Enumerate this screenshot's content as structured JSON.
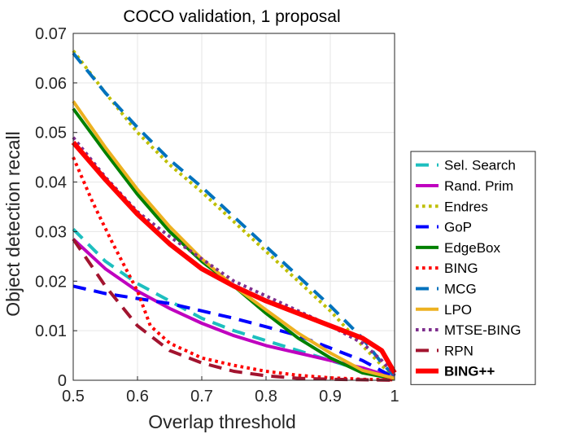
{
  "chart_data": {
    "type": "line",
    "title": "COCO validation, 1 proposal",
    "xlabel": "Overlap threshold",
    "ylabel": "Object detection recall",
    "xlim": [
      0.5,
      1.0
    ],
    "ylim": [
      0,
      0.07
    ],
    "xticks": [
      "0.5",
      "0.6",
      "0.7",
      "0.8",
      "0.9",
      "1"
    ],
    "yticks": [
      "0",
      "0.01",
      "0.02",
      "0.03",
      "0.04",
      "0.05",
      "0.06",
      "0.07"
    ],
    "grid": true,
    "legend_position": "right",
    "series": [
      {
        "name": "Sel. Search",
        "color": "#1dbfbf",
        "style": "dashed",
        "width": 4,
        "x": [
          0.5,
          0.55,
          0.6,
          0.65,
          0.7,
          0.75,
          0.8,
          0.85,
          0.9,
          0.95,
          1.0
        ],
        "y": [
          0.0305,
          0.024,
          0.0195,
          0.016,
          0.0125,
          0.01,
          0.008,
          0.006,
          0.004,
          0.002,
          0.0003
        ]
      },
      {
        "name": "Rand. Prim",
        "color": "#bf00bf",
        "style": "solid",
        "width": 4,
        "x": [
          0.5,
          0.55,
          0.6,
          0.65,
          0.7,
          0.75,
          0.8,
          0.85,
          0.9,
          0.95,
          1.0
        ],
        "y": [
          0.0285,
          0.0225,
          0.018,
          0.0145,
          0.0115,
          0.009,
          0.007,
          0.0055,
          0.004,
          0.0025,
          0.0005
        ]
      },
      {
        "name": "Endres",
        "color": "#bfbf00",
        "style": "dotted",
        "width": 4,
        "x": [
          0.5,
          0.55,
          0.6,
          0.65,
          0.7,
          0.75,
          0.8,
          0.85,
          0.9,
          0.95,
          0.98,
          1.0
        ],
        "y": [
          0.0665,
          0.058,
          0.05,
          0.0435,
          0.038,
          0.032,
          0.026,
          0.02,
          0.014,
          0.007,
          0.003,
          0.0005
        ]
      },
      {
        "name": "GoP",
        "color": "#0000ff",
        "style": "dashed",
        "width": 4,
        "x": [
          0.5,
          0.55,
          0.6,
          0.65,
          0.7,
          0.75,
          0.8,
          0.85,
          0.9,
          0.95,
          1.0
        ],
        "y": [
          0.019,
          0.0175,
          0.0165,
          0.0155,
          0.014,
          0.0125,
          0.0108,
          0.009,
          0.0065,
          0.004,
          0.0005
        ]
      },
      {
        "name": "EdgeBox",
        "color": "#008000",
        "style": "solid",
        "width": 4,
        "x": [
          0.5,
          0.55,
          0.6,
          0.65,
          0.7,
          0.75,
          0.8,
          0.85,
          0.9,
          0.95,
          1.0
        ],
        "y": [
          0.0548,
          0.046,
          0.0375,
          0.03,
          0.024,
          0.019,
          0.0135,
          0.0085,
          0.0045,
          0.0015,
          0.0003
        ]
      },
      {
        "name": "BING",
        "color": "#ff0000",
        "style": "dotted",
        "width": 4,
        "x": [
          0.5,
          0.53,
          0.56,
          0.6,
          0.62,
          0.65,
          0.7,
          0.75,
          0.8,
          0.85,
          0.9,
          0.95,
          1.0
        ],
        "y": [
          0.045,
          0.036,
          0.028,
          0.018,
          0.011,
          0.0075,
          0.0045,
          0.003,
          0.0018,
          0.001,
          0.0005,
          0.0002,
          0.0001
        ]
      },
      {
        "name": "MCG",
        "color": "#0072bd",
        "style": "dashed",
        "width": 4,
        "x": [
          0.5,
          0.55,
          0.6,
          0.65,
          0.7,
          0.75,
          0.8,
          0.85,
          0.9,
          0.95,
          0.98,
          1.0
        ],
        "y": [
          0.066,
          0.058,
          0.051,
          0.0445,
          0.039,
          0.033,
          0.027,
          0.021,
          0.015,
          0.0085,
          0.0035,
          0.0008
        ]
      },
      {
        "name": "LPO",
        "color": "#edb120",
        "style": "solid",
        "width": 4,
        "x": [
          0.5,
          0.55,
          0.6,
          0.65,
          0.7,
          0.75,
          0.8,
          0.85,
          0.9,
          0.95,
          1.0
        ],
        "y": [
          0.0563,
          0.047,
          0.0385,
          0.031,
          0.0245,
          0.019,
          0.0142,
          0.0095,
          0.0055,
          0.002,
          0.0004
        ]
      },
      {
        "name": "MTSE-BING",
        "color": "#7e2f8e",
        "style": "dotted",
        "width": 4,
        "x": [
          0.5,
          0.55,
          0.6,
          0.65,
          0.7,
          0.75,
          0.8,
          0.85,
          0.9,
          0.95,
          0.98,
          1.0
        ],
        "y": [
          0.049,
          0.041,
          0.034,
          0.029,
          0.0245,
          0.02,
          0.017,
          0.014,
          0.011,
          0.0075,
          0.004,
          0.001
        ]
      },
      {
        "name": "RPN",
        "color": "#a2142f",
        "style": "dashed",
        "width": 4,
        "x": [
          0.5,
          0.55,
          0.6,
          0.65,
          0.7,
          0.75,
          0.8,
          0.85,
          0.9,
          0.95,
          1.0
        ],
        "y": [
          0.0285,
          0.019,
          0.011,
          0.006,
          0.0035,
          0.0018,
          0.0009,
          0.0004,
          0.0002,
          0.0001,
          0.0
        ]
      },
      {
        "name": "BING++",
        "color": "#ff0000",
        "style": "solid",
        "width": 6,
        "bold": true,
        "x": [
          0.5,
          0.55,
          0.6,
          0.65,
          0.7,
          0.75,
          0.8,
          0.85,
          0.9,
          0.95,
          0.98,
          1.0
        ],
        "y": [
          0.048,
          0.0405,
          0.0335,
          0.0275,
          0.0225,
          0.019,
          0.016,
          0.0135,
          0.011,
          0.0085,
          0.006,
          0.0015
        ]
      }
    ]
  }
}
